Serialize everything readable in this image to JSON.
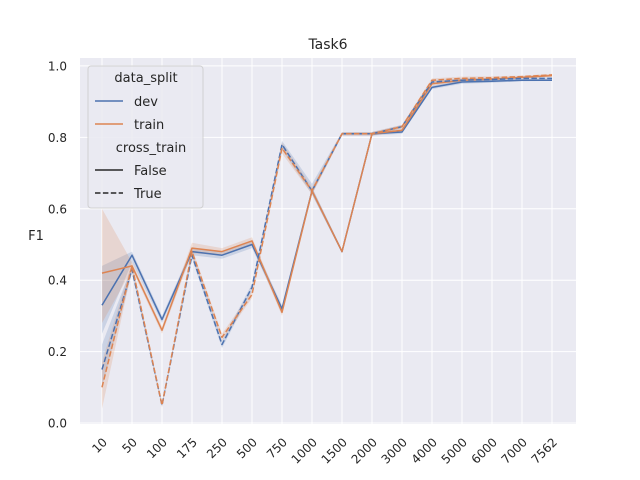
{
  "chart_data": {
    "type": "line",
    "title": "Task6",
    "xlabel": "",
    "ylabel": "F1",
    "categories": [
      "10",
      "50",
      "100",
      "175",
      "250",
      "500",
      "750",
      "1000",
      "1500",
      "2000",
      "3000",
      "4000",
      "5000",
      "6000",
      "7000",
      "7562"
    ],
    "ylim": [
      0.0,
      1.0
    ],
    "yticks": [
      0.0,
      0.2,
      0.4,
      0.6,
      0.8,
      1.0
    ],
    "grid": true,
    "legend_position": "top-left",
    "legend": {
      "hue_title": "data_split",
      "style_title": "cross_train",
      "hue_entries": [
        {
          "label": "dev",
          "color": "#4c72b0"
        },
        {
          "label": "train",
          "color": "#dd8452"
        }
      ],
      "style_entries": [
        {
          "label": "False",
          "dash": "solid"
        },
        {
          "label": "True",
          "dash": "dashed"
        }
      ]
    },
    "series": [
      {
        "split": "dev",
        "cross_train": "False",
        "color": "#4c72b0",
        "dash": "solid",
        "values": [
          0.33,
          0.47,
          0.29,
          0.48,
          0.47,
          0.5,
          0.32,
          0.65,
          0.48,
          0.81,
          0.815,
          0.94,
          0.955,
          0.957,
          0.96,
          0.96
        ],
        "lower": [
          0.25,
          0.45,
          0.28,
          0.47,
          0.46,
          0.49,
          0.31,
          0.64,
          0.475,
          0.805,
          0.81,
          0.935,
          0.95,
          0.953,
          0.957,
          0.958
        ],
        "upper": [
          0.44,
          0.48,
          0.3,
          0.49,
          0.48,
          0.51,
          0.33,
          0.66,
          0.485,
          0.815,
          0.82,
          0.945,
          0.96,
          0.961,
          0.963,
          0.962
        ]
      },
      {
        "split": "train",
        "cross_train": "False",
        "color": "#dd8452",
        "dash": "solid",
        "values": [
          0.42,
          0.44,
          0.26,
          0.49,
          0.48,
          0.51,
          0.31,
          0.65,
          0.48,
          0.81,
          0.82,
          0.95,
          0.96,
          0.963,
          0.968,
          0.973
        ],
        "lower": [
          0.28,
          0.43,
          0.25,
          0.475,
          0.47,
          0.5,
          0.3,
          0.64,
          0.475,
          0.805,
          0.815,
          0.945,
          0.955,
          0.96,
          0.965,
          0.97
        ],
        "upper": [
          0.6,
          0.45,
          0.27,
          0.505,
          0.49,
          0.52,
          0.32,
          0.66,
          0.485,
          0.815,
          0.825,
          0.955,
          0.965,
          0.966,
          0.971,
          0.976
        ]
      },
      {
        "split": "dev",
        "cross_train": "True",
        "color": "#4c72b0",
        "dash": "dashed",
        "values": [
          0.15,
          0.43,
          0.05,
          0.47,
          0.22,
          0.38,
          0.78,
          0.65,
          0.81,
          0.81,
          0.83,
          0.955,
          0.96,
          0.962,
          0.965,
          0.965
        ],
        "lower": [
          0.1,
          0.42,
          0.045,
          0.46,
          0.21,
          0.37,
          0.765,
          0.64,
          0.805,
          0.805,
          0.825,
          0.95,
          0.955,
          0.958,
          0.962,
          0.962
        ],
        "upper": [
          0.22,
          0.44,
          0.055,
          0.48,
          0.23,
          0.39,
          0.79,
          0.67,
          0.815,
          0.815,
          0.835,
          0.96,
          0.965,
          0.966,
          0.968,
          0.968
        ]
      },
      {
        "split": "train",
        "cross_train": "True",
        "color": "#dd8452",
        "dash": "dashed",
        "values": [
          0.1,
          0.44,
          0.05,
          0.48,
          0.24,
          0.36,
          0.77,
          0.65,
          0.81,
          0.81,
          0.83,
          0.96,
          0.965,
          0.967,
          0.97,
          0.975
        ],
        "lower": [
          0.04,
          0.43,
          0.045,
          0.47,
          0.23,
          0.35,
          0.755,
          0.64,
          0.805,
          0.805,
          0.825,
          0.955,
          0.96,
          0.963,
          0.967,
          0.972
        ],
        "upper": [
          0.17,
          0.45,
          0.055,
          0.49,
          0.25,
          0.37,
          0.785,
          0.66,
          0.815,
          0.815,
          0.835,
          0.965,
          0.97,
          0.971,
          0.973,
          0.978
        ]
      }
    ]
  }
}
